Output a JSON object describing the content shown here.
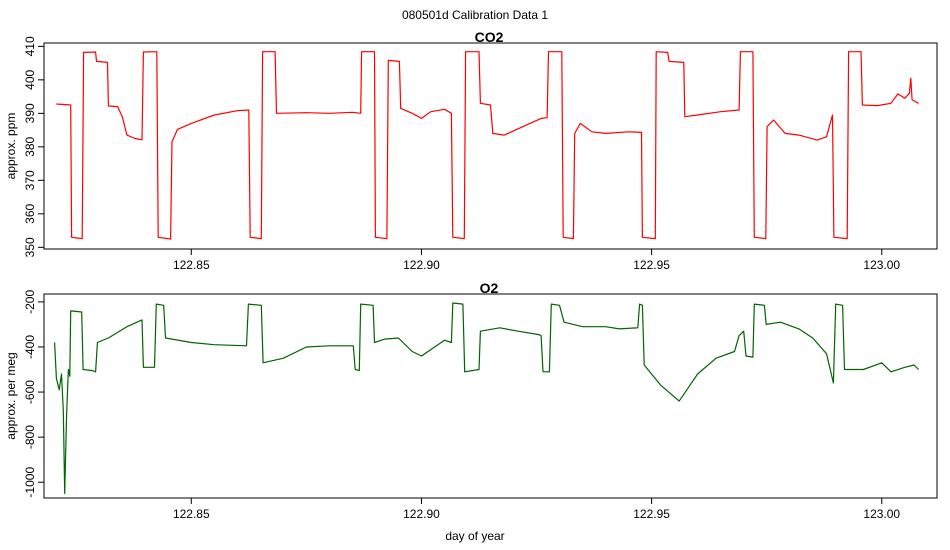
{
  "page": {
    "title": "080501d   Calibration Data 1"
  },
  "chart_data": [
    {
      "type": "line",
      "title": "CO2",
      "xlabel": "",
      "ylabel": "approx. ppm",
      "xlim": [
        122.818,
        123.012
      ],
      "ylim": [
        349.5,
        411
      ],
      "x_ticks": [
        122.85,
        122.9,
        122.95,
        123.0
      ],
      "x_tick_labels": [
        "122.85",
        "122.90",
        "122.95",
        "123.00"
      ],
      "y_ticks": [
        350,
        360,
        370,
        380,
        390,
        400,
        410
      ],
      "y_tick_labels": [
        "350",
        "360",
        "370",
        "380",
        "390",
        "400",
        "410"
      ],
      "grid": false,
      "series": [
        {
          "color": "#ff0000",
          "points": [
            [
              122.8207,
              392.8
            ],
            [
              122.8238,
              392.5
            ],
            [
              122.824,
              353.0
            ],
            [
              122.8263,
              352.6
            ],
            [
              122.8266,
              408.2
            ],
            [
              122.8292,
              408.3
            ],
            [
              122.8294,
              405.5
            ],
            [
              122.8318,
              405.2
            ],
            [
              122.832,
              392.2
            ],
            [
              122.834,
              392.0
            ],
            [
              122.835,
              389.0
            ],
            [
              122.836,
              383.5
            ],
            [
              122.8378,
              382.5
            ],
            [
              122.8393,
              382.1
            ],
            [
              122.8396,
              408.3
            ],
            [
              122.8425,
              408.4
            ],
            [
              122.8428,
              353.0
            ],
            [
              122.8455,
              352.5
            ],
            [
              122.8458,
              381.5
            ],
            [
              122.847,
              385.2
            ],
            [
              122.85,
              387.0
            ],
            [
              122.855,
              389.5
            ],
            [
              122.86,
              390.8
            ],
            [
              122.8625,
              391.0
            ],
            [
              122.8628,
              353.0
            ],
            [
              122.8652,
              352.6
            ],
            [
              122.8655,
              408.4
            ],
            [
              122.8682,
              408.4
            ],
            [
              122.8685,
              390.0
            ],
            [
              122.875,
              390.2
            ],
            [
              122.88,
              390.0
            ],
            [
              122.885,
              390.3
            ],
            [
              122.8868,
              390.0
            ],
            [
              122.887,
              408.4
            ],
            [
              122.8898,
              408.4
            ],
            [
              122.89,
              353.0
            ],
            [
              122.8925,
              352.6
            ],
            [
              122.8928,
              405.8
            ],
            [
              122.8952,
              405.5
            ],
            [
              122.8955,
              391.5
            ],
            [
              122.898,
              390.0
            ],
            [
              122.9,
              388.5
            ],
            [
              122.902,
              390.5
            ],
            [
              122.905,
              391.2
            ],
            [
              122.9065,
              390.0
            ],
            [
              122.9068,
              353.0
            ],
            [
              122.9093,
              352.6
            ],
            [
              122.9096,
              408.4
            ],
            [
              122.9125,
              408.4
            ],
            [
              122.9128,
              393.0
            ],
            [
              122.915,
              392.5
            ],
            [
              122.9155,
              384.0
            ],
            [
              122.918,
              383.5
            ],
            [
              122.922,
              386.0
            ],
            [
              122.926,
              388.5
            ],
            [
              122.9273,
              388.7
            ],
            [
              122.9276,
              408.4
            ],
            [
              122.9305,
              408.4
            ],
            [
              122.9308,
              353.0
            ],
            [
              122.933,
              352.6
            ],
            [
              122.9333,
              384.0
            ],
            [
              122.9345,
              387.0
            ],
            [
              122.937,
              384.5
            ],
            [
              122.94,
              384.0
            ],
            [
              122.945,
              384.5
            ],
            [
              122.9478,
              384.3
            ],
            [
              122.948,
              353.0
            ],
            [
              122.9508,
              352.6
            ],
            [
              122.951,
              408.4
            ],
            [
              122.9535,
              408.2
            ],
            [
              122.9538,
              405.5
            ],
            [
              122.957,
              405.2
            ],
            [
              122.9572,
              389.0
            ],
            [
              122.96,
              389.5
            ],
            [
              122.965,
              390.5
            ],
            [
              122.969,
              391.0
            ],
            [
              122.9693,
              408.4
            ],
            [
              122.972,
              408.4
            ],
            [
              122.9723,
              353.0
            ],
            [
              122.9748,
              352.6
            ],
            [
              122.9751,
              386.0
            ],
            [
              122.9765,
              388.0
            ],
            [
              122.979,
              384.0
            ],
            [
              122.982,
              383.5
            ],
            [
              122.986,
              382.0
            ],
            [
              122.988,
              383.0
            ],
            [
              122.9893,
              389.5
            ],
            [
              122.9896,
              353.0
            ],
            [
              122.9925,
              352.6
            ],
            [
              122.9928,
              408.4
            ],
            [
              122.9955,
              408.4
            ],
            [
              122.9958,
              392.5
            ],
            [
              122.999,
              392.3
            ],
            [
              123.002,
              393.0
            ],
            [
              123.0035,
              395.8
            ],
            [
              123.005,
              394.5
            ],
            [
              123.006,
              396.0
            ],
            [
              123.0063,
              400.5
            ],
            [
              123.0066,
              394.0
            ],
            [
              123.008,
              393.0
            ]
          ]
        }
      ]
    },
    {
      "type": "line",
      "title": "O2",
      "xlabel": "day of year",
      "ylabel": "approx. per meg",
      "xlim": [
        122.818,
        123.012
      ],
      "ylim": [
        -1070,
        -165
      ],
      "x_ticks": [
        122.85,
        122.9,
        122.95,
        123.0
      ],
      "x_tick_labels": [
        "122.85",
        "122.90",
        "122.95",
        "123.00"
      ],
      "y_ticks": [
        -1000,
        -800,
        -600,
        -400,
        -200
      ],
      "y_tick_labels": [
        "-1000",
        "-800",
        "-600",
        "-400",
        "-200"
      ],
      "grid": false,
      "series": [
        {
          "color": "#006400",
          "points": [
            [
              122.8203,
              -380
            ],
            [
              122.8207,
              -540
            ],
            [
              122.8213,
              -590
            ],
            [
              122.8218,
              -520
            ],
            [
              122.8222,
              -680
            ],
            [
              122.8225,
              -1050
            ],
            [
              122.8229,
              -700
            ],
            [
              122.8233,
              -500
            ],
            [
              122.8236,
              -530
            ],
            [
              122.8238,
              -240
            ],
            [
              122.8262,
              -245
            ],
            [
              122.8265,
              -500
            ],
            [
              122.8285,
              -505
            ],
            [
              122.8292,
              -510
            ],
            [
              122.8296,
              -380
            ],
            [
              122.832,
              -360
            ],
            [
              122.836,
              -310
            ],
            [
              122.8393,
              -280
            ],
            [
              122.8396,
              -490
            ],
            [
              122.842,
              -490
            ],
            [
              122.8424,
              -210
            ],
            [
              122.844,
              -215
            ],
            [
              122.8444,
              -360
            ],
            [
              122.85,
              -380
            ],
            [
              122.855,
              -390
            ],
            [
              122.862,
              -395
            ],
            [
              122.8624,
              -210
            ],
            [
              122.8652,
              -215
            ],
            [
              122.8656,
              -470
            ],
            [
              122.87,
              -450
            ],
            [
              122.875,
              -400
            ],
            [
              122.88,
              -395
            ],
            [
              122.8852,
              -395
            ],
            [
              122.8856,
              -500
            ],
            [
              122.8865,
              -505
            ],
            [
              122.8868,
              -210
            ],
            [
              122.8895,
              -215
            ],
            [
              122.8898,
              -380
            ],
            [
              122.892,
              -365
            ],
            [
              122.895,
              -360
            ],
            [
              122.898,
              -420
            ],
            [
              122.9,
              -440
            ],
            [
              122.905,
              -370
            ],
            [
              122.9065,
              -380
            ],
            [
              122.9068,
              -205
            ],
            [
              122.909,
              -210
            ],
            [
              122.9094,
              -510
            ],
            [
              122.9125,
              -500
            ],
            [
              122.9128,
              -330
            ],
            [
              122.917,
              -315
            ],
            [
              122.921,
              -330
            ],
            [
              122.9255,
              -345
            ],
            [
              122.926,
              -350
            ],
            [
              122.9264,
              -510
            ],
            [
              122.9278,
              -510
            ],
            [
              122.9282,
              -210
            ],
            [
              122.93,
              -215
            ],
            [
              122.931,
              -290
            ],
            [
              122.935,
              -310
            ],
            [
              122.94,
              -310
            ],
            [
              122.943,
              -320
            ],
            [
              122.947,
              -315
            ],
            [
              122.9474,
              -210
            ],
            [
              122.948,
              -215
            ],
            [
              122.9484,
              -480
            ],
            [
              122.952,
              -570
            ],
            [
              122.956,
              -640
            ],
            [
              122.96,
              -520
            ],
            [
              122.964,
              -450
            ],
            [
              122.968,
              -420
            ],
            [
              122.969,
              -350
            ],
            [
              122.97,
              -330
            ],
            [
              122.9705,
              -440
            ],
            [
              122.972,
              -445
            ],
            [
              122.9723,
              -210
            ],
            [
              122.9745,
              -215
            ],
            [
              122.9749,
              -300
            ],
            [
              122.978,
              -290
            ],
            [
              122.982,
              -320
            ],
            [
              122.985,
              -360
            ],
            [
              122.988,
              -430
            ],
            [
              122.9895,
              -560
            ],
            [
              122.99,
              -210
            ],
            [
              122.9915,
              -215
            ],
            [
              122.9919,
              -500
            ],
            [
              122.996,
              -500
            ],
            [
              123.0,
              -470
            ],
            [
              123.002,
              -510
            ],
            [
              123.005,
              -490
            ],
            [
              123.007,
              -480
            ],
            [
              123.008,
              -500
            ]
          ]
        }
      ]
    }
  ]
}
